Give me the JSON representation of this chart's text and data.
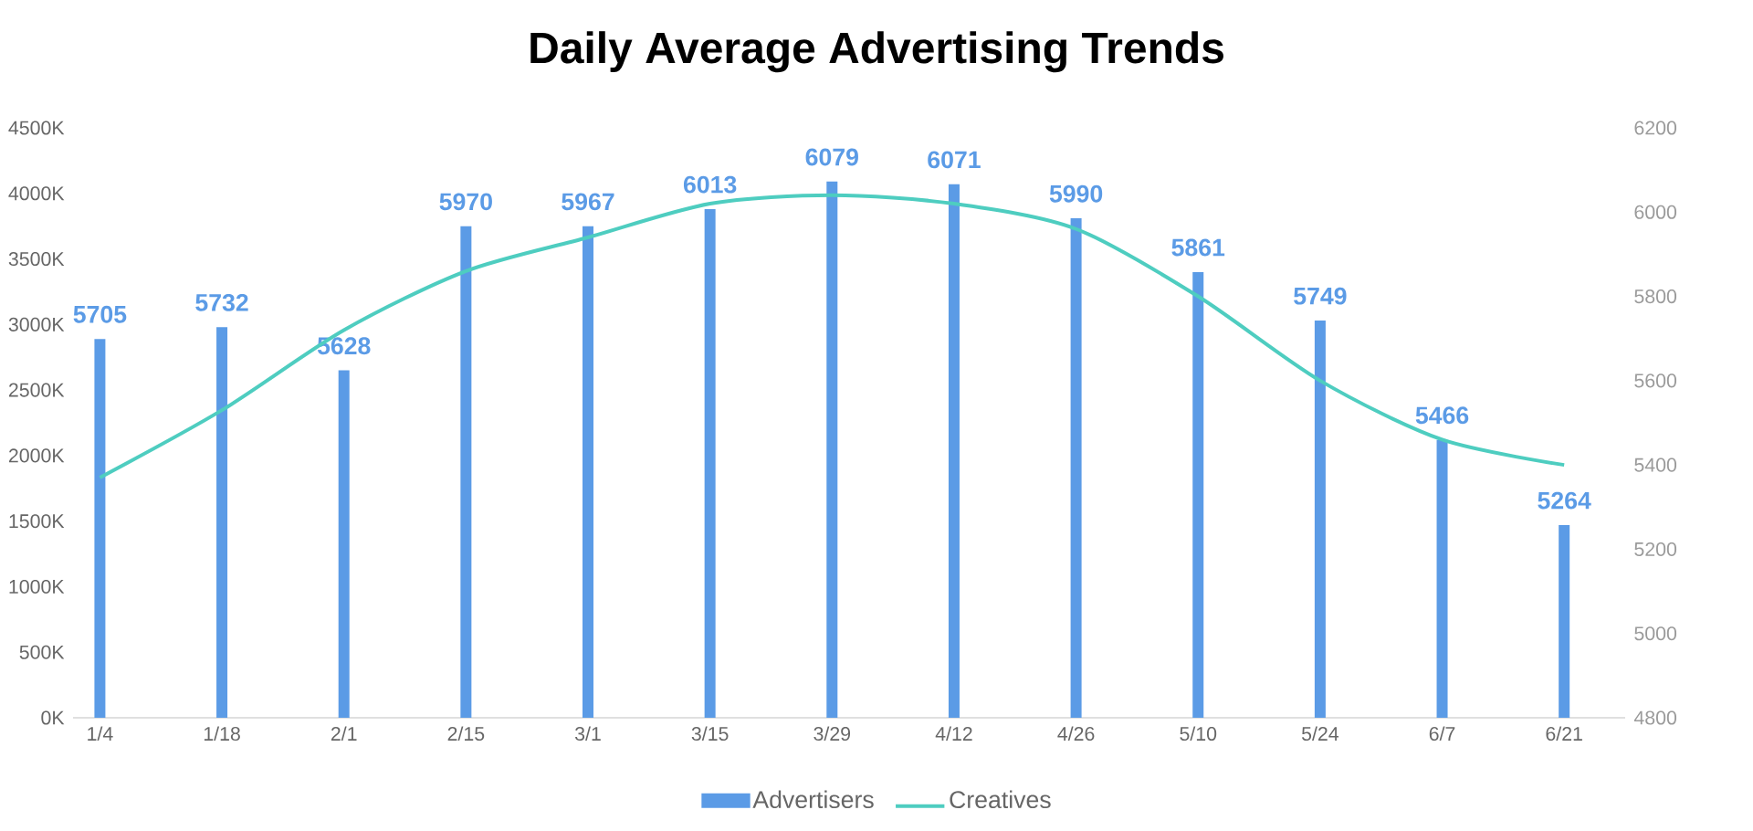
{
  "chart_data": {
    "type": "bar",
    "title": "Daily Average Advertising Trends",
    "categories": [
      "1/4",
      "1/18",
      "2/1",
      "2/15",
      "3/1",
      "3/15",
      "3/29",
      "4/12",
      "4/26",
      "5/10",
      "5/24",
      "6/7",
      "6/21"
    ],
    "series": [
      {
        "name": "Advertisers",
        "color": "#5b9be6",
        "values": [
          2890,
          2980,
          2650,
          3750,
          3750,
          3880,
          4090,
          4070,
          3810,
          3400,
          3030,
          2120,
          1470
        ]
      },
      {
        "name": "Creatives",
        "type": "line",
        "axis": "y2",
        "color": "#4ecdc0",
        "values": [
          5370,
          5530,
          5720,
          5860,
          5940,
          6020,
          6040,
          6020,
          5960,
          5800,
          5600,
          5460,
          5400
        ]
      }
    ],
    "annotations": [
      "5705",
      "5732",
      "5628",
      "5970",
      "5967",
      "6013",
      "6079",
      "6071",
      "5990",
      "5861",
      "5749",
      "5466",
      "5264"
    ],
    "ylim": [
      0,
      4500
    ],
    "yticks": [
      {
        "value": 0,
        "label": "0K"
      },
      {
        "value": 500,
        "label": "500K"
      },
      {
        "value": 1000,
        "label": "1000K"
      },
      {
        "value": 1500,
        "label": "1500K"
      },
      {
        "value": 2000,
        "label": "2000K"
      },
      {
        "value": 2500,
        "label": "2500K"
      },
      {
        "value": 3000,
        "label": "3000K"
      },
      {
        "value": 3500,
        "label": "3500K"
      },
      {
        "value": 4000,
        "label": "4000K"
      },
      {
        "value": 4500,
        "label": "4500K"
      }
    ],
    "y2lim": [
      4800,
      6200
    ],
    "y2ticks": [
      4800,
      5000,
      5200,
      5400,
      5600,
      5800,
      6000,
      6200
    ],
    "legend": "bottom",
    "grid": false,
    "marker": "none"
  }
}
